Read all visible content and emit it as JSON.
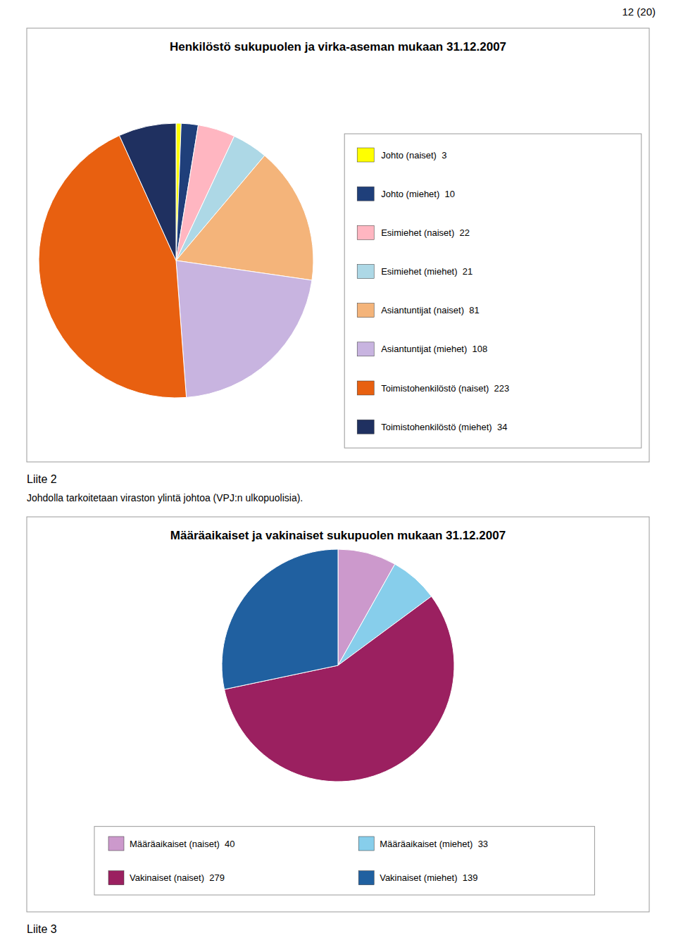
{
  "page_number": "12 (20)",
  "chart_data": [
    {
      "type": "pie",
      "title": "Henkilöstö sukupuolen ja virka-aseman mukaan 31.12.2007",
      "categories": [
        "Johto (naiset)  3",
        "Johto (miehet)  10",
        "Esimiehet (naiset)  22",
        "Esimiehet (miehet)  21",
        "Asiantuntijat (naiset)  81",
        "Asiantuntijat (miehet)  108",
        "Toimistohenkilöstö (naiset)  223",
        "Toimistohenkilöstö (miehet)  34"
      ],
      "values": [
        3,
        10,
        22,
        21,
        81,
        108,
        223,
        34
      ],
      "colors": [
        "#FFFF00",
        "#1F3F7A",
        "#FFB6C1",
        "#ADD8E6",
        "#F4B47A",
        "#C8B4E0",
        "#E86010",
        "#1F3060"
      ],
      "legend": "right",
      "annotations": [
        "Liite 2",
        "Johdolla tarkoitetaan viraston ylintä johtoa (VPJ:n ulkopuolisia)."
      ]
    },
    {
      "type": "pie",
      "title": "Määräaikaiset ja vakinaiset sukupuolen mukaan 31.12.2007",
      "categories": [
        "Määräaikaiset (naiset)  40",
        "Määräaikaiset (miehet)  33",
        "Vakinaiset (naiset)  279",
        "Vakinaiset (miehet)  139"
      ],
      "values": [
        40,
        33,
        279,
        139
      ],
      "colors": [
        "#CC99CC",
        "#87CEEB",
        "#9B2060",
        "#2060A0"
      ],
      "legend": "bottom",
      "annotations": [
        "Liite 3"
      ]
    }
  ]
}
